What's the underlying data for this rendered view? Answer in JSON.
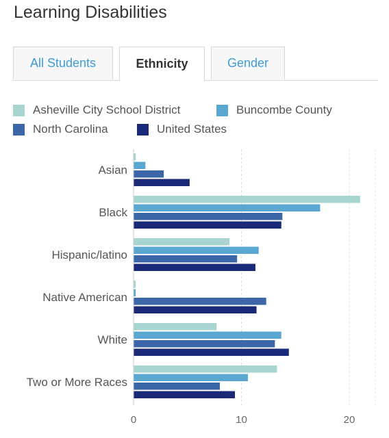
{
  "page": {
    "title": "Learning Disabilities"
  },
  "tabs": [
    {
      "label": "All Students",
      "active": false
    },
    {
      "label": "Ethnicity",
      "active": true
    },
    {
      "label": "Gender",
      "active": false
    }
  ],
  "colors": {
    "accent": "#3d9cd6",
    "series": [
      "#a8d5d0",
      "#5aa8d2",
      "#3b66a8",
      "#1b2a78"
    ]
  },
  "chart_data": {
    "type": "bar",
    "orientation": "horizontal",
    "categories": [
      "Asian",
      "Black",
      "Hispanic/latino",
      "Native American",
      "White",
      "Two or More Races"
    ],
    "series": [
      {
        "name": "Asheville City School District",
        "values": [
          0.2,
          21.0,
          8.9,
          0.2,
          7.7,
          13.3
        ]
      },
      {
        "name": "Buncombe County",
        "values": [
          1.1,
          17.3,
          11.6,
          0.2,
          13.7,
          10.6
        ]
      },
      {
        "name": "North Carolina",
        "values": [
          2.8,
          13.8,
          9.6,
          12.3,
          13.1,
          8.0
        ]
      },
      {
        "name": "United States",
        "values": [
          5.2,
          13.7,
          11.3,
          11.4,
          14.4,
          9.4
        ]
      }
    ],
    "xlim": [
      0,
      23
    ],
    "xticks": [
      0,
      10,
      20
    ],
    "grid": true,
    "legend": "top"
  }
}
